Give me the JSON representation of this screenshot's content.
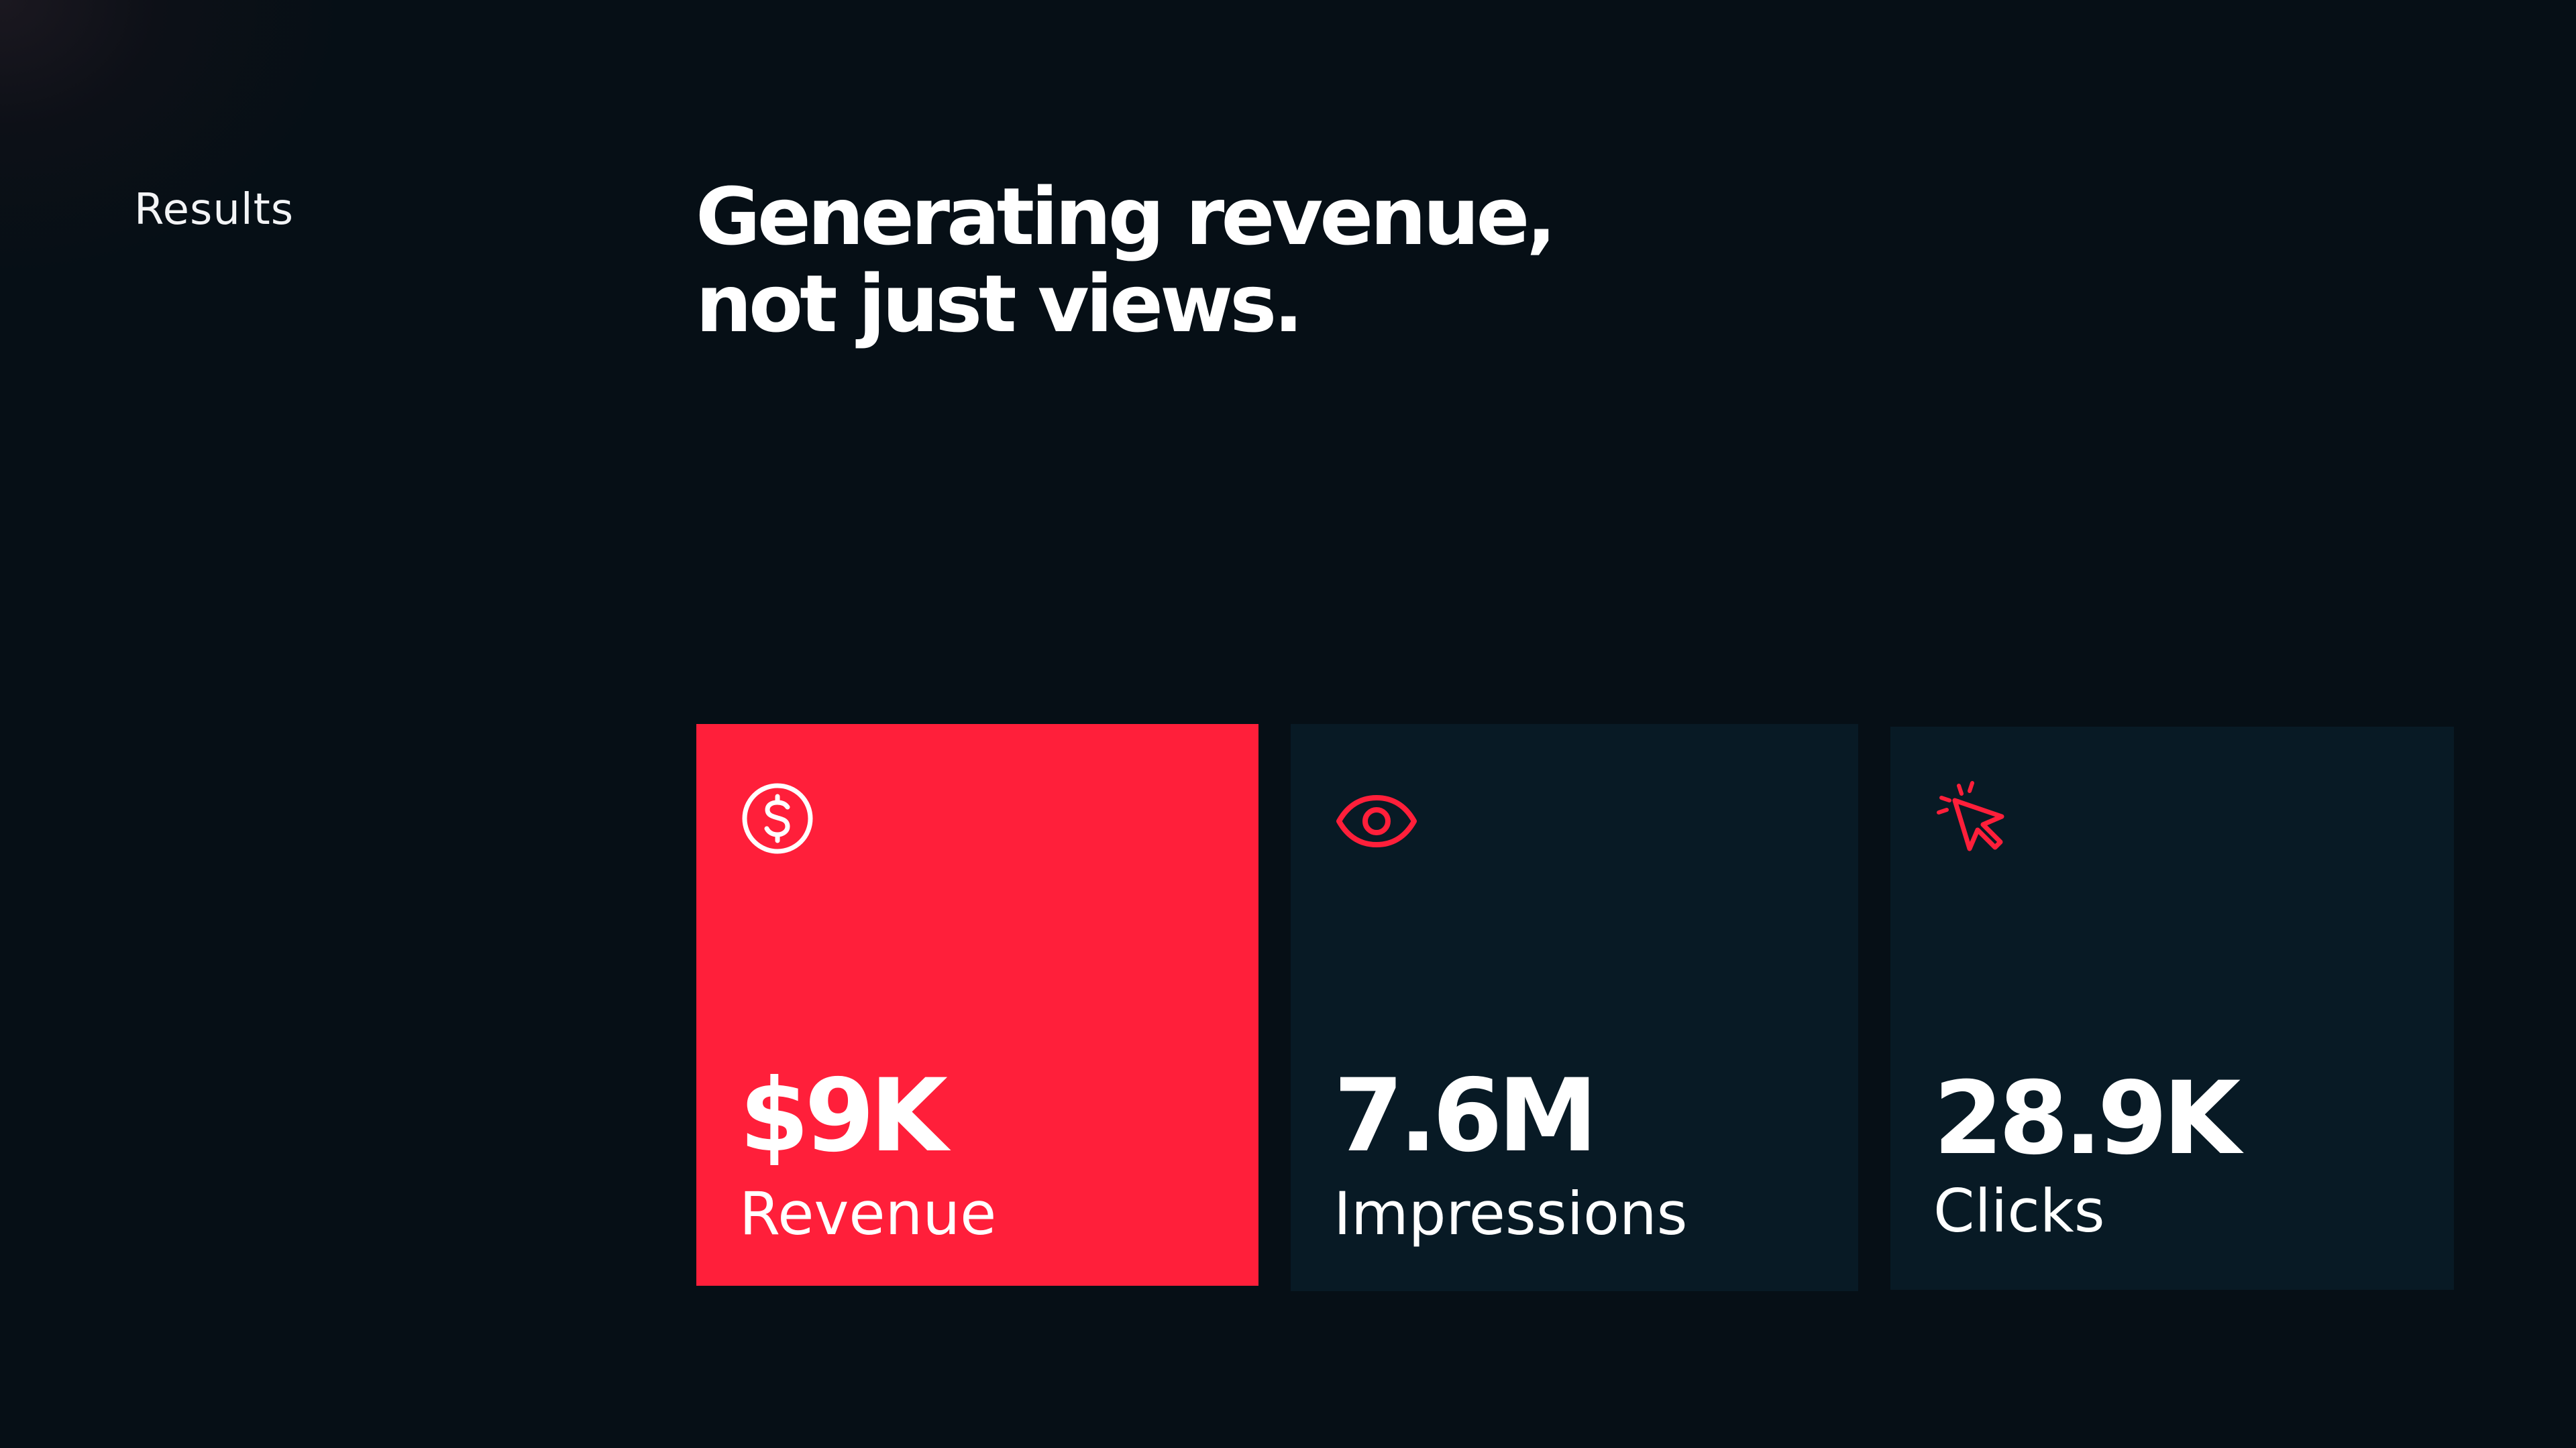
{
  "section": {
    "label": "Results"
  },
  "headline": {
    "line1": "Generating revenue,",
    "line2": "not just views."
  },
  "stats": [
    {
      "icon": "dollar-circle-icon",
      "value": "$9K",
      "label": "Revenue",
      "background": "#ff1f3a",
      "icon_color": "#ffffff"
    },
    {
      "icon": "eye-icon",
      "value": "7.6M",
      "label": "Impressions",
      "background": "#081a25",
      "icon_color": "#ff1f3a"
    },
    {
      "icon": "cursor-click-icon",
      "value": "28.9K",
      "label": "Clicks",
      "background": "#081a25",
      "icon_color": "#ff1f3a"
    }
  ],
  "colors": {
    "background": "#060f16",
    "accent": "#ff1f3a",
    "card": "#081a25",
    "text": "#ffffff"
  }
}
